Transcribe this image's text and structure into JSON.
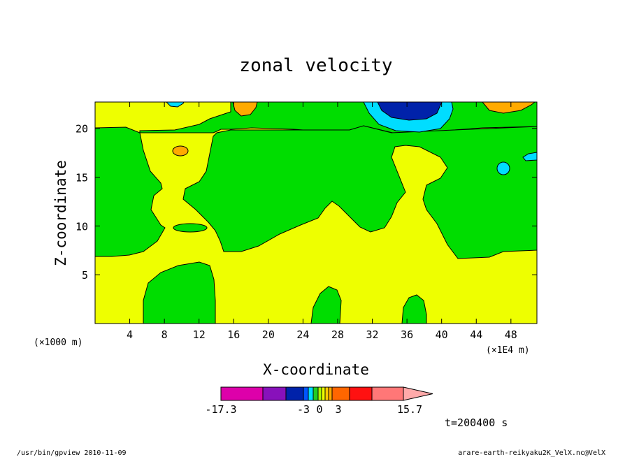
{
  "chart_data": {
    "type": "contour",
    "title": "zonal velocity",
    "xlabel": "X-coordinate",
    "ylabel": "Z-coordinate",
    "x_unit_left": "(×1000 m)",
    "x_unit_right": "(×1E4 m)",
    "x_ticks": [
      4,
      8,
      12,
      16,
      20,
      24,
      28,
      32,
      36,
      40,
      44,
      48
    ],
    "y_ticks": [
      5,
      10,
      15,
      20
    ],
    "xlim": [
      0,
      51
    ],
    "ylim": [
      0,
      22.7
    ],
    "time_label": "t=200400 s",
    "colorbar": {
      "labels": [
        "-17.3",
        "-3",
        "0",
        "3",
        "15.7"
      ],
      "colors": [
        "#dd00aa",
        "#8811bb",
        "#0022aa",
        "#0055ff",
        "#00ddff",
        "#22cc22",
        "#aaff00",
        "#eeff00",
        "#ffcc00",
        "#ffaa00",
        "#ff6600",
        "#ff1111",
        "#ff7777",
        "#ffaaaa"
      ]
    },
    "field_colors": {
      "positive_weak": "#eeff00",
      "near_zero": "#00dd00",
      "negative_weak": "#00ddff",
      "negative_strong": "#0022aa",
      "positive_moderate": "#ffaa00"
    }
  },
  "footer": {
    "left": "/usr/bin/gpview  2010-11-09",
    "right": "arare-earth-reikyaku2K_VelX.nc@VelX"
  }
}
